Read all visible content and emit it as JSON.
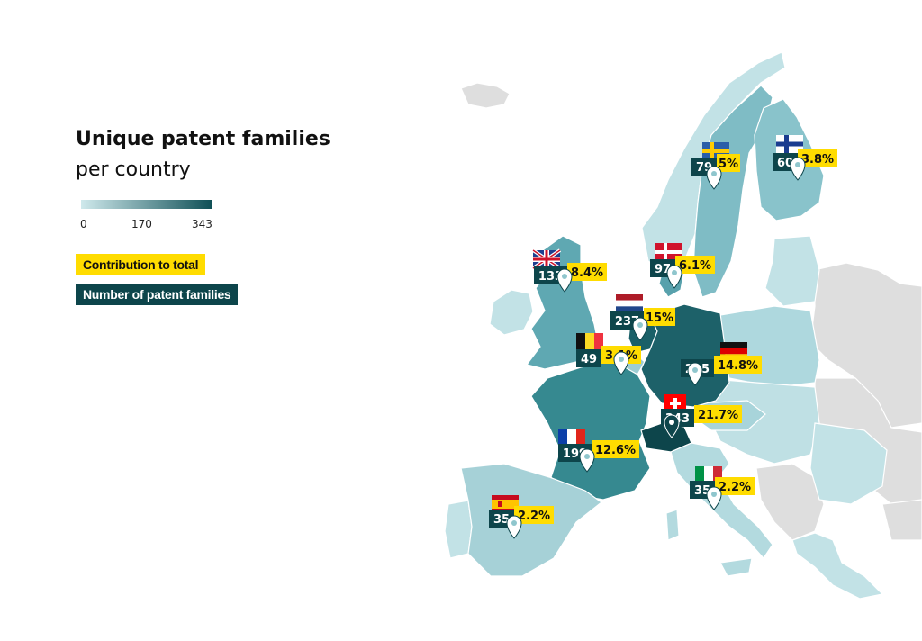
{
  "title_line1": "Unique patent families",
  "title_line2": "per country",
  "scale": {
    "min": "0",
    "mid": "170",
    "max": "343"
  },
  "legend": {
    "contribution": "Contribution to total",
    "families": "Number of patent families"
  },
  "colors": {
    "low": "#cfe9ec",
    "high": "#0f4f56",
    "accent": "#ffdc00",
    "dark": "#0d454b",
    "nodata": "#dedede"
  },
  "countries": [
    {
      "name": "Sweden",
      "families": "79",
      "share": "5%",
      "flag": "sweden-flag"
    },
    {
      "name": "Finland",
      "families": "60",
      "share": "3.8%",
      "flag": "finland-flag"
    },
    {
      "name": "United Kingdom",
      "families": "133",
      "share": "8.4%",
      "flag": "uk-flag"
    },
    {
      "name": "Denmark",
      "families": "97",
      "share": "6.1%",
      "flag": "denmark-flag"
    },
    {
      "name": "Netherlands",
      "families": "237",
      "share": "15%",
      "flag": "netherlands-flag"
    },
    {
      "name": "Belgium",
      "families": "49",
      "share": "3.1%",
      "flag": "belgium-flag"
    },
    {
      "name": "Germany",
      "families": "235",
      "share": "14.8%",
      "flag": "germany-flag"
    },
    {
      "name": "Switzerland",
      "families": "343",
      "share": "21.7%",
      "flag": "switzerland-flag"
    },
    {
      "name": "France",
      "families": "199",
      "share": "12.6%",
      "flag": "france-flag"
    },
    {
      "name": "Italy",
      "families": "35",
      "share": "2.2%",
      "flag": "italy-flag"
    },
    {
      "name": "Spain",
      "families": "35",
      "share": "2.2%",
      "flag": "spain-flag"
    }
  ]
}
